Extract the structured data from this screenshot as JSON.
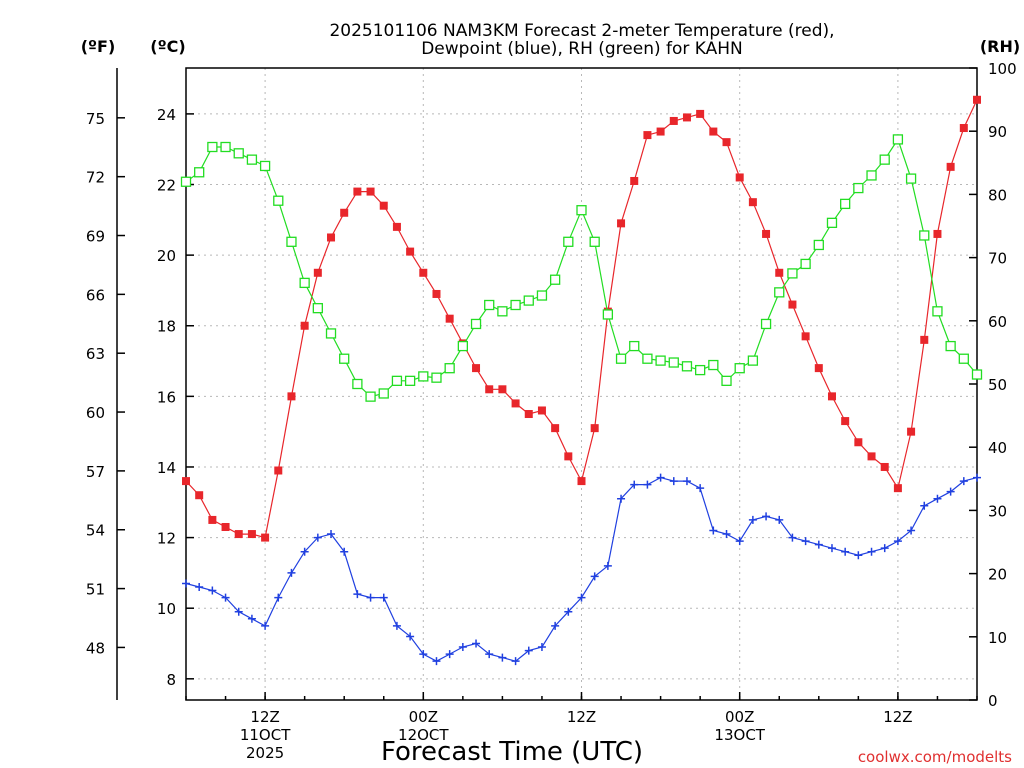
{
  "chart_data": {
    "type": "line",
    "title_line1": "2025101106 NAM3KM Forecast 2-meter Temperature (red),",
    "title_line2": "Dewpoint (blue), RH (green) for KAHN",
    "xlabel": "Forecast Time (UTC)",
    "credit": "coolwx.com/modelts",
    "units": {
      "fahrenheit": "(ºF)",
      "celsius": "(ºC)",
      "rh": "(RH)"
    },
    "x_range_hours": [
      0,
      60
    ],
    "celsius_range": [
      7.4,
      25.3
    ],
    "rh_range": [
      0,
      100
    ],
    "celsius_ticks": [
      "8",
      "10",
      "12",
      "14",
      "16",
      "18",
      "20",
      "22",
      "24"
    ],
    "fahrenheit_ticks": [
      "48",
      "51",
      "54",
      "57",
      "60",
      "63",
      "66",
      "69",
      "72",
      "75"
    ],
    "rh_ticks": [
      "0",
      "10",
      "20",
      "30",
      "40",
      "50",
      "60",
      "70",
      "80",
      "90",
      "100"
    ],
    "x_ticks": [
      {
        "hour": 6,
        "l1": "12Z",
        "l2": "11OCT",
        "l3": "2025"
      },
      {
        "hour": 18,
        "l1": "00Z",
        "l2": "12OCT",
        "l3": ""
      },
      {
        "hour": 30,
        "l1": "12Z",
        "l2": "",
        "l3": ""
      },
      {
        "hour": 42,
        "l1": "00Z",
        "l2": "13OCT",
        "l3": ""
      },
      {
        "hour": 54,
        "l1": "12Z",
        "l2": "",
        "l3": ""
      }
    ],
    "series": [
      {
        "name": "2-meter Temperature",
        "unit": "ºC",
        "color": "#e8262b",
        "marker": "filled-square",
        "values": [
          13.6,
          13.2,
          12.5,
          12.3,
          12.1,
          12.1,
          12.0,
          13.9,
          16.0,
          18.0,
          19.5,
          20.5,
          21.2,
          21.8,
          21.8,
          21.4,
          20.8,
          20.1,
          19.5,
          18.9,
          18.2,
          17.5,
          16.8,
          16.2,
          16.2,
          15.8,
          15.5,
          15.6,
          15.1,
          14.3,
          13.6,
          15.1,
          18.4,
          20.9,
          22.1,
          23.4,
          23.5,
          23.8,
          23.9,
          24.0,
          23.5,
          23.2,
          22.2,
          21.5,
          20.6,
          19.5,
          18.6,
          17.7,
          16.8,
          16.0,
          15.3,
          14.7,
          14.3,
          14.0,
          13.4,
          15.0,
          17.6,
          20.6,
          22.5,
          23.6,
          24.4
        ]
      },
      {
        "name": "Dewpoint",
        "unit": "ºC",
        "color": "#2040e0",
        "marker": "plus",
        "values": [
          10.7,
          10.6,
          10.5,
          10.3,
          9.9,
          9.7,
          9.5,
          10.3,
          11.0,
          11.6,
          12.0,
          12.1,
          11.6,
          10.4,
          10.3,
          10.3,
          9.5,
          9.2,
          8.7,
          8.5,
          8.7,
          8.9,
          9.0,
          8.7,
          8.6,
          8.5,
          8.8,
          8.9,
          9.5,
          9.9,
          10.3,
          10.9,
          11.2,
          13.1,
          13.5,
          13.5,
          13.7,
          13.6,
          13.6,
          13.4,
          12.2,
          12.1,
          11.9,
          12.5,
          12.6,
          12.5,
          12.0,
          11.9,
          11.8,
          11.7,
          11.6,
          11.5,
          11.6,
          11.7,
          11.9,
          12.2,
          12.9,
          13.1,
          13.3,
          13.6,
          13.7
        ]
      },
      {
        "name": "RH",
        "unit": "%",
        "color": "#22dd22",
        "marker": "open-square",
        "values": [
          82,
          83.5,
          87.5,
          87.5,
          86.5,
          85.5,
          84.5,
          79,
          72.5,
          66,
          62,
          58,
          54,
          50,
          48,
          48.5,
          50.5,
          50.5,
          51.2,
          51,
          52.5,
          56,
          59.5,
          62.5,
          61.5,
          62.5,
          63.2,
          64,
          66.5,
          72.5,
          77.5,
          72.5,
          61,
          54,
          56,
          54,
          53.7,
          53.4,
          52.8,
          52.2,
          53,
          50.5,
          52.5,
          53.7,
          59.5,
          64.5,
          67.5,
          69,
          72,
          75.5,
          78.5,
          81,
          83,
          85.5,
          88.7,
          82.5,
          73.5,
          61.5,
          56,
          54,
          51.5
        ]
      }
    ]
  }
}
